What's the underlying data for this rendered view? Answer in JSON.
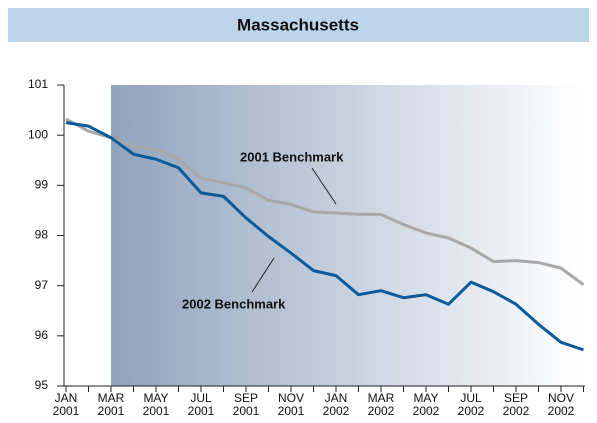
{
  "chart_data": {
    "type": "line",
    "title": "Massachusetts",
    "categories": [
      "JAN 2001",
      null,
      "MAR 2001",
      null,
      "MAY 2001",
      null,
      "JUL 2001",
      null,
      "SEP 2001",
      null,
      "NOV 2001",
      null,
      "JAN 2002",
      null,
      "MAR 2002",
      null,
      "MAY 2002",
      null,
      "JUL 2002",
      null,
      "SEP 2002",
      null,
      "NOV 2002",
      null
    ],
    "series": [
      {
        "name": "2001 Benchmark",
        "color": "#a8a8a8",
        "values": [
          100.32,
          100.08,
          99.95,
          99.78,
          99.72,
          99.52,
          99.15,
          99.05,
          98.95,
          98.7,
          98.62,
          98.47,
          98.45,
          98.42,
          98.42,
          98.22,
          98.05,
          97.95,
          97.75,
          97.48,
          97.5,
          97.46,
          97.35,
          97.02
        ]
      },
      {
        "name": "2002 Benchmark",
        "color": "#0a5a9c",
        "values": [
          100.25,
          100.18,
          99.95,
          99.62,
          99.52,
          99.35,
          98.85,
          98.78,
          98.35,
          97.98,
          97.65,
          97.3,
          97.2,
          96.82,
          96.9,
          96.76,
          96.82,
          96.63,
          97.07,
          96.88,
          96.63,
          96.23,
          95.87,
          95.72
        ]
      }
    ],
    "ylim": [
      95,
      101
    ],
    "yticks": [
      95,
      96,
      97,
      98,
      99,
      100,
      101
    ]
  }
}
